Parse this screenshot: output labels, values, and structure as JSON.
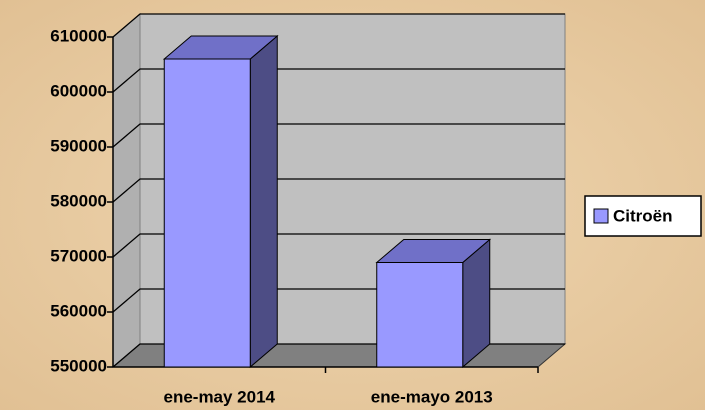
{
  "chart_data": {
    "type": "bar3d",
    "categories": [
      "ene-may 2014",
      "ene-mayo 2013"
    ],
    "series": [
      {
        "name": "Citroën",
        "color": "#9999ff",
        "values": [
          606000,
          569000
        ]
      }
    ],
    "ylim": [
      550000,
      610000
    ],
    "yticks": [
      550000,
      560000,
      570000,
      580000,
      590000,
      600000,
      610000
    ],
    "grid": true,
    "legend": "right"
  }
}
